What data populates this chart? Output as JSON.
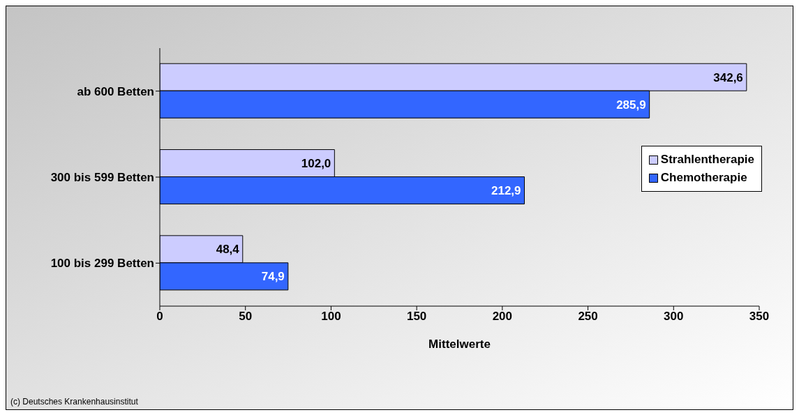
{
  "chart_data": {
    "type": "bar",
    "orientation": "horizontal",
    "categories": [
      "ab 600 Betten",
      "300 bis 599 Betten",
      "100 bis 299 Betten"
    ],
    "series": [
      {
        "name": "Strahlentherapie",
        "color": "#ccccff",
        "values": [
          342.6,
          102.0,
          48.4
        ],
        "value_labels": [
          "342,6",
          "102,0",
          "48,4"
        ]
      },
      {
        "name": "Chemotherapie",
        "color": "#3366ff",
        "values": [
          285.9,
          212.9,
          74.9
        ],
        "value_labels": [
          "285,9",
          "212,9",
          "74,9"
        ]
      }
    ],
    "xlim": [
      0,
      350
    ],
    "xticks": [
      0,
      50,
      100,
      150,
      200,
      250,
      300,
      350
    ],
    "xlabel": "Mittelwerte",
    "legend": "right",
    "grid": false,
    "annotations": [
      "(c) Deutsches Krankenhausinstitut"
    ]
  }
}
